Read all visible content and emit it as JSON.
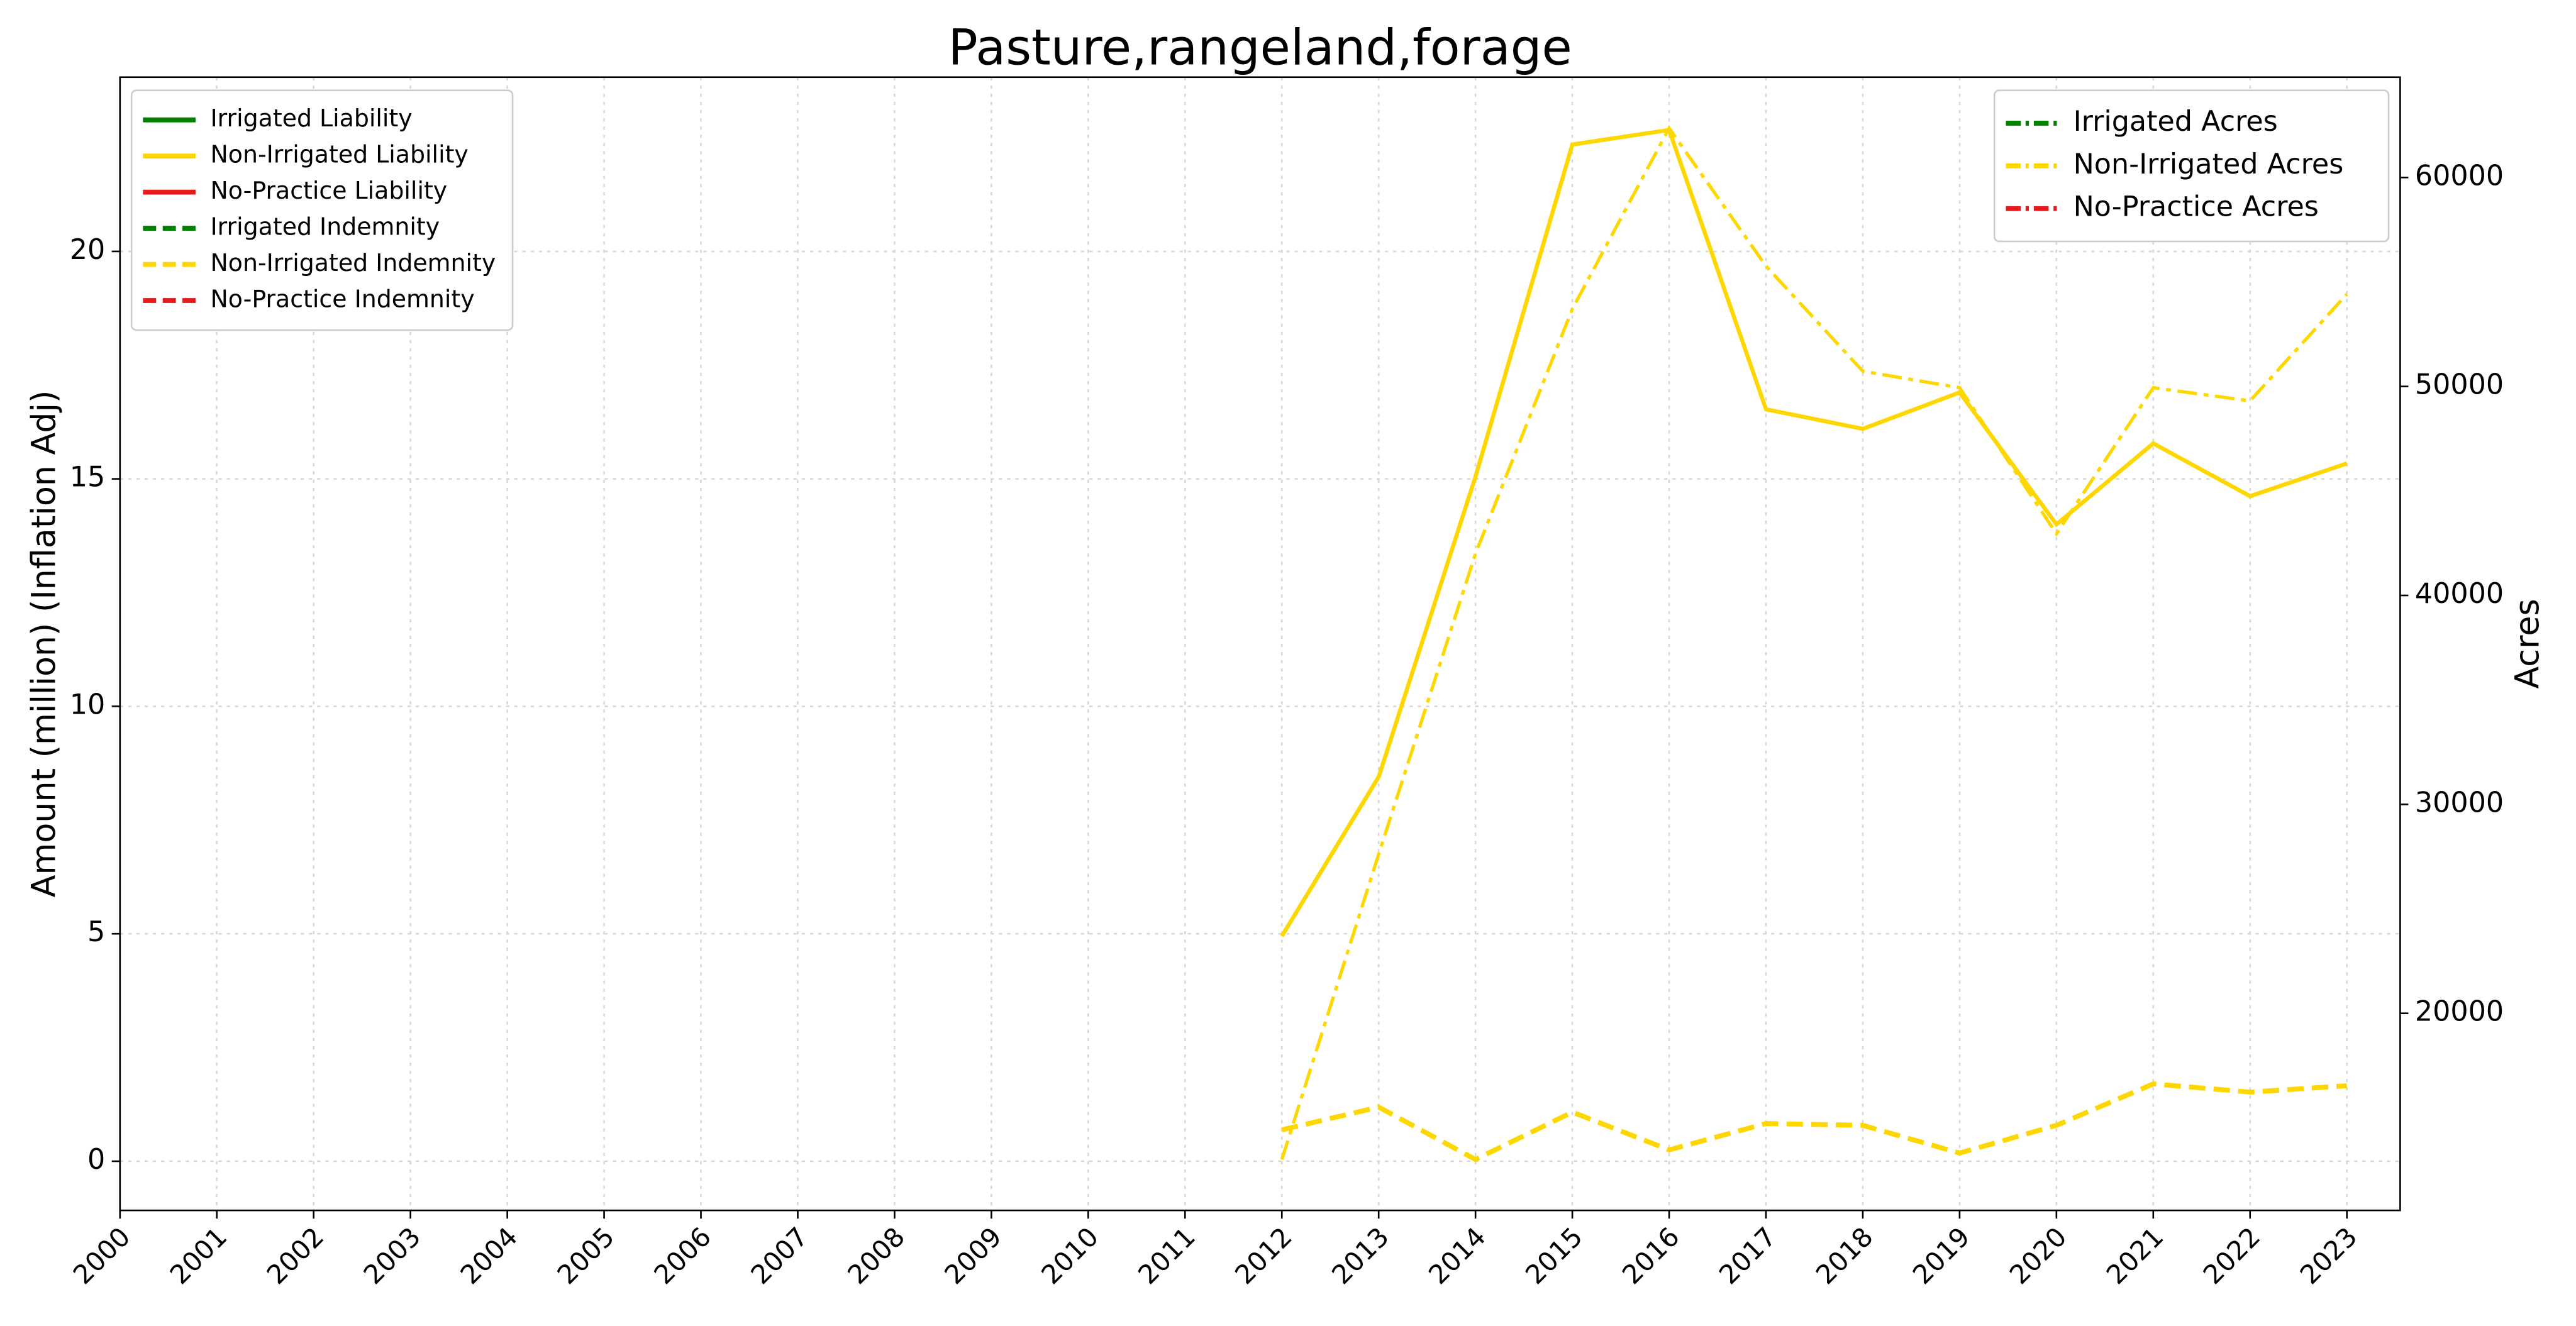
{
  "chart_data": {
    "type": "line",
    "title": "Pasture,rangeland,forage",
    "y_label": "Amount (million) (Inflation Adj)",
    "y2_label": "Acres",
    "x": [
      2000,
      2001,
      2002,
      2003,
      2004,
      2005,
      2006,
      2007,
      2008,
      2009,
      2010,
      2011,
      2012,
      2013,
      2014,
      2015,
      2016,
      2017,
      2018,
      2019,
      2020,
      2021,
      2022,
      2023
    ],
    "xlim": [
      2000,
      2023.55
    ],
    "xticks": [
      2000,
      2001,
      2002,
      2003,
      2004,
      2005,
      2006,
      2007,
      2008,
      2009,
      2010,
      2011,
      2012,
      2013,
      2014,
      2015,
      2016,
      2017,
      2018,
      2019,
      2020,
      2021,
      2022,
      2023
    ],
    "ylim": [
      -1.08,
      23.83
    ],
    "yticks": [
      0,
      5,
      10,
      15,
      20
    ],
    "y2lim": [
      10570,
      64800
    ],
    "y2ticks": [
      20000,
      30000,
      40000,
      50000,
      60000
    ],
    "grid": true,
    "legend": "upper left",
    "legend2": "upper right",
    "series": [
      {
        "name": "Irrigated Liability",
        "color": "#008000",
        "linestyle": "solid",
        "axis": "y",
        "values": [
          null,
          null,
          null,
          null,
          null,
          null,
          null,
          null,
          null,
          null,
          null,
          null,
          null,
          null,
          null,
          null,
          null,
          null,
          null,
          null,
          null,
          null,
          null,
          null
        ]
      },
      {
        "name": "Non-Irrigated Liability",
        "color": "#ffd700",
        "linestyle": "solid",
        "axis": "y",
        "values": [
          null,
          null,
          null,
          null,
          null,
          null,
          null,
          null,
          null,
          null,
          null,
          null,
          4.95,
          8.45,
          15.05,
          22.35,
          22.67,
          16.53,
          16.1,
          16.9,
          14.0,
          15.78,
          14.62,
          15.34
        ]
      },
      {
        "name": "No-Practice Liability",
        "color": "#e41a1c",
        "linestyle": "solid",
        "axis": "y",
        "values": [
          null,
          null,
          null,
          null,
          null,
          null,
          null,
          null,
          null,
          null,
          null,
          null,
          null,
          null,
          null,
          null,
          null,
          null,
          null,
          null,
          null,
          null,
          null,
          null
        ]
      },
      {
        "name": "Irrigated Indemnity",
        "color": "#008000",
        "linestyle": "dashed",
        "axis": "y",
        "values": [
          null,
          null,
          null,
          null,
          null,
          null,
          null,
          null,
          null,
          null,
          null,
          null,
          null,
          null,
          null,
          null,
          null,
          null,
          null,
          null,
          null,
          null,
          null,
          null
        ]
      },
      {
        "name": "Non-Irrigated Indemnity",
        "color": "#ffd700",
        "linestyle": "dashed",
        "axis": "y",
        "values": [
          null,
          null,
          null,
          null,
          null,
          null,
          null,
          null,
          null,
          null,
          null,
          null,
          0.69,
          1.19,
          0.04,
          1.08,
          0.25,
          0.83,
          0.79,
          0.18,
          0.79,
          1.7,
          1.52,
          1.66
        ]
      },
      {
        "name": "No-Practice Indemnity",
        "color": "#e41a1c",
        "linestyle": "dashed",
        "axis": "y",
        "values": [
          null,
          null,
          null,
          null,
          null,
          null,
          null,
          null,
          null,
          null,
          null,
          null,
          null,
          null,
          null,
          null,
          null,
          null,
          null,
          null,
          null,
          null,
          null,
          null
        ]
      },
      {
        "name": "Irrigated Acres",
        "color": "#008000",
        "linestyle": "dashdot",
        "axis": "y2",
        "values": [
          null,
          null,
          null,
          null,
          null,
          null,
          null,
          null,
          null,
          null,
          null,
          null,
          null,
          null,
          null,
          null,
          null,
          null,
          null,
          null,
          null,
          null,
          null,
          null
        ]
      },
      {
        "name": "Non-Irrigated Acres",
        "color": "#ffd700",
        "linestyle": "dashdot",
        "axis": "y2",
        "values": [
          null,
          null,
          null,
          null,
          null,
          null,
          null,
          null,
          null,
          null,
          null,
          null,
          13006,
          27620,
          42000,
          53710,
          62360,
          55760,
          50730,
          49940,
          42950,
          49940,
          49310,
          54420
        ]
      },
      {
        "name": "No-Practice Acres",
        "color": "#e41a1c",
        "linestyle": "dashdot",
        "axis": "y2",
        "values": [
          null,
          null,
          null,
          null,
          null,
          null,
          null,
          null,
          null,
          null,
          null,
          null,
          null,
          null,
          null,
          null,
          null,
          null,
          null,
          null,
          null,
          null,
          null,
          null
        ]
      }
    ]
  }
}
